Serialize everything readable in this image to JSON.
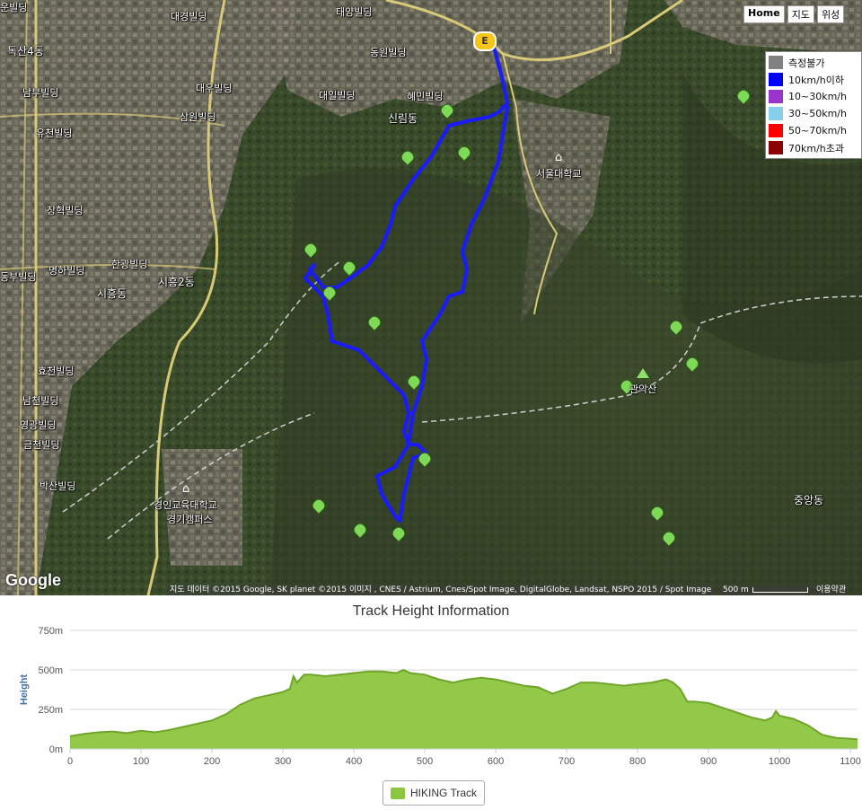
{
  "map": {
    "labels": [
      {
        "text": "운빌딩",
        "kind": "building"
      },
      {
        "text": "대경빌딩",
        "kind": "building"
      },
      {
        "text": "태양빌딩",
        "kind": "building"
      },
      {
        "text": "독산4동",
        "kind": "district"
      },
      {
        "text": "동원빌딩",
        "kind": "building"
      },
      {
        "text": "남부빌딩",
        "kind": "building"
      },
      {
        "text": "대우빌딩",
        "kind": "building"
      },
      {
        "text": "대일빌딩",
        "kind": "building"
      },
      {
        "text": "혜민빌딩",
        "kind": "building"
      },
      {
        "text": "삼원빌딩",
        "kind": "building"
      },
      {
        "text": "신림동",
        "kind": "district"
      },
      {
        "text": "유천빌딩",
        "kind": "building"
      },
      {
        "text": "서울대학교",
        "kind": "university"
      },
      {
        "text": "장혁빌딩",
        "kind": "building"
      },
      {
        "text": "한광빌딩",
        "kind": "building"
      },
      {
        "text": "명하빌딩",
        "kind": "building"
      },
      {
        "text": "동부빌딩",
        "kind": "building"
      },
      {
        "text": "시흥동",
        "kind": "district"
      },
      {
        "text": "시흥2동",
        "kind": "district"
      },
      {
        "text": "효천빌딩",
        "kind": "building"
      },
      {
        "text": "남천빌딩",
        "kind": "building"
      },
      {
        "text": "영광빌딩",
        "kind": "building"
      },
      {
        "text": "금천빌딩",
        "kind": "building"
      },
      {
        "text": "박산빌딩",
        "kind": "building"
      },
      {
        "text": "관악산",
        "kind": "peak"
      },
      {
        "text": "경인교육대학교",
        "kind": "university"
      },
      {
        "text": "경기캠퍼스",
        "kind": "university"
      },
      {
        "text": "중앙동",
        "kind": "district"
      }
    ],
    "map_type_buttons": [
      "Home",
      "지도",
      "위성"
    ],
    "active_map_type": "Home",
    "start_marker": "E",
    "speed_legend": [
      {
        "label": "측정불가",
        "color": "#808080"
      },
      {
        "label": "10km/h이하",
        "color": "#0000ff"
      },
      {
        "label": "10~30km/h",
        "color": "#9933cc"
      },
      {
        "label": "30~50km/h",
        "color": "#87ceeb"
      },
      {
        "label": "50~70km/h",
        "color": "#ff0000"
      },
      {
        "label": "70km/h초과",
        "color": "#8b0000"
      }
    ],
    "attribution": "지도 데이터 ©2015 Google, SK planet ©2015 이미지 , CNES / Astrium, Cnes/Spot Image, DigitalGlobe, Landsat, NSPO 2015 / Spot Image",
    "scale": "500 m",
    "terms": "이용약관",
    "google_logo": "Google",
    "track_color": "#1a1aff",
    "waypoint_color": "#7ed957"
  },
  "chart_data": {
    "type": "area",
    "title": "Track Height Information",
    "xlabel": "",
    "ylabel": "Height",
    "xlim": [
      0,
      1110
    ],
    "ylim": [
      0,
      750
    ],
    "x_ticks": [
      0,
      100,
      200,
      300,
      400,
      500,
      600,
      700,
      800,
      900,
      1000,
      1100
    ],
    "y_ticks": [
      0,
      250,
      500,
      750
    ],
    "y_tick_labels": [
      "0m",
      "250m",
      "500m",
      "750m"
    ],
    "grid": true,
    "legend_placement": "bottom-center",
    "series": [
      {
        "name": "HIKING Track",
        "color": "#8cc63f",
        "x": [
          0,
          20,
          40,
          60,
          80,
          100,
          120,
          140,
          160,
          180,
          200,
          220,
          240,
          260,
          280,
          300,
          310,
          315,
          320,
          330,
          340,
          360,
          380,
          400,
          420,
          440,
          460,
          470,
          480,
          500,
          520,
          540,
          560,
          580,
          600,
          620,
          640,
          660,
          680,
          700,
          720,
          740,
          760,
          780,
          800,
          820,
          840,
          850,
          860,
          870,
          880,
          900,
          920,
          940,
          960,
          980,
          990,
          995,
          1000,
          1020,
          1040,
          1060,
          1080,
          1100,
          1110
        ],
        "y": [
          80,
          95,
          105,
          110,
          100,
          115,
          105,
          120,
          140,
          160,
          180,
          220,
          280,
          320,
          340,
          360,
          380,
          460,
          420,
          470,
          470,
          460,
          470,
          480,
          490,
          490,
          480,
          500,
          480,
          470,
          440,
          420,
          440,
          450,
          440,
          420,
          400,
          390,
          350,
          380,
          420,
          420,
          410,
          400,
          410,
          420,
          440,
          420,
          380,
          300,
          300,
          290,
          260,
          230,
          200,
          180,
          200,
          240,
          210,
          190,
          150,
          90,
          70,
          65,
          60
        ]
      }
    ]
  }
}
